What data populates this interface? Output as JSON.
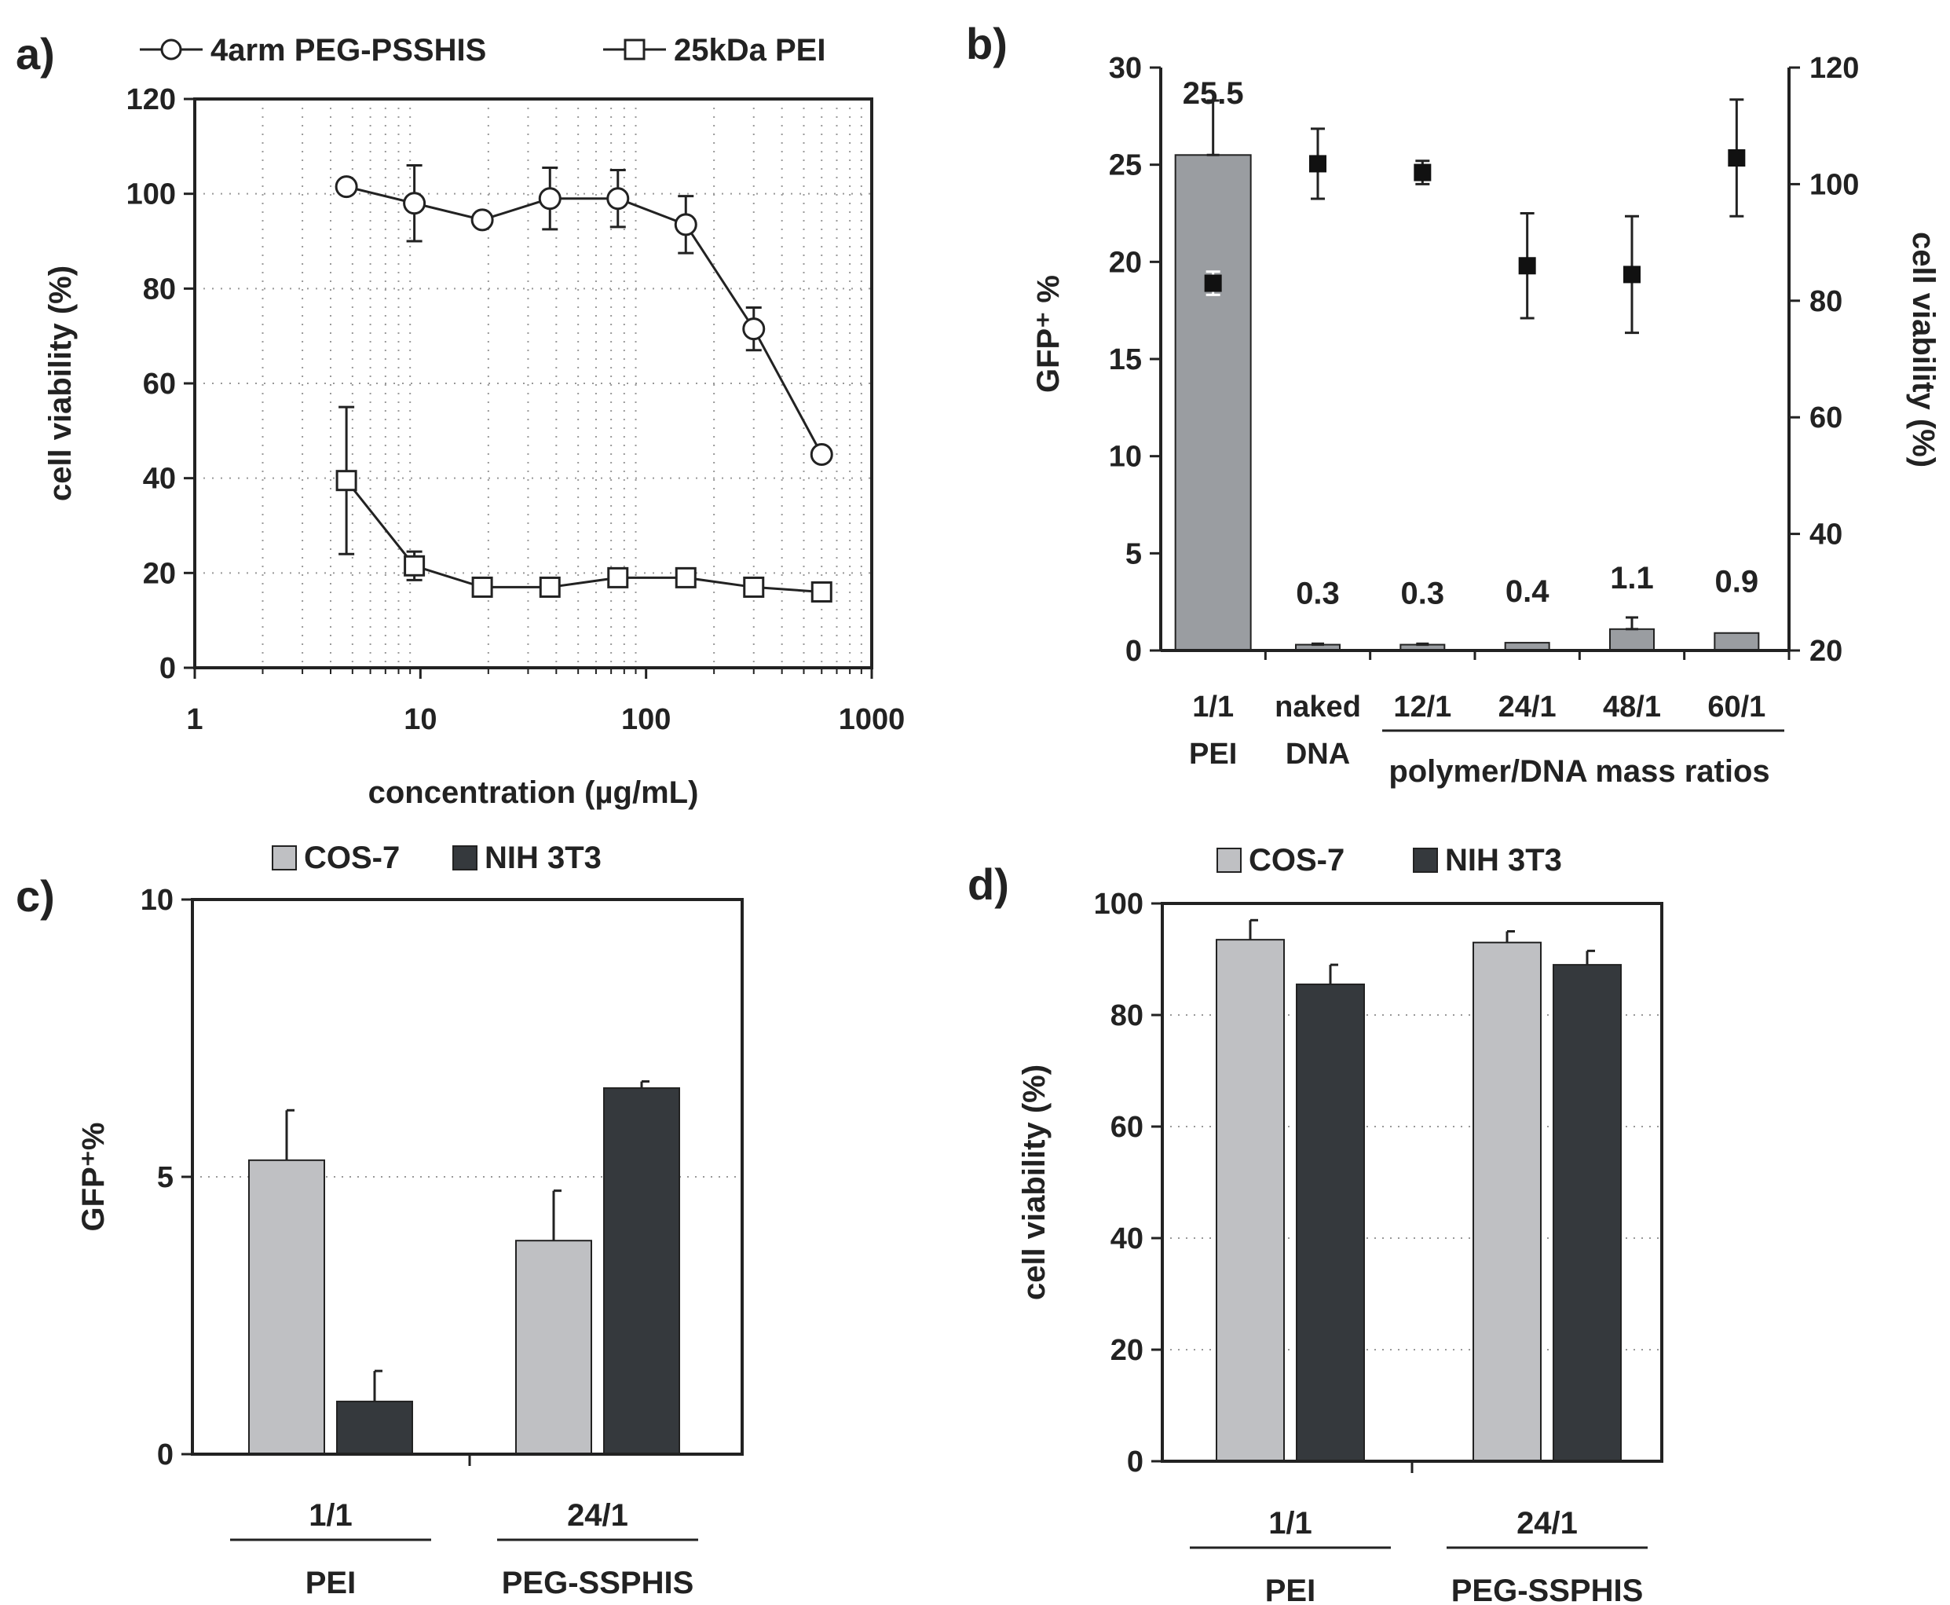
{
  "chart_data": [
    {
      "panel": "a)",
      "type": "line",
      "xscale": "log",
      "xlabel": "concentration (µg/mL)",
      "ylabel": "cell viability (%)",
      "xlim": [
        1,
        1000
      ],
      "ylim": [
        0,
        120
      ],
      "xticks": [
        1,
        10,
        100,
        1000
      ],
      "xtick_labels": [
        "1",
        "10",
        "100",
        "1000"
      ],
      "yticks": [
        0,
        20,
        40,
        60,
        80,
        100,
        120
      ],
      "ytick_labels": [
        "0",
        "20",
        "40",
        "60",
        "80",
        "100",
        "120"
      ],
      "grid": true,
      "legend_position": "top",
      "series": [
        {
          "name": "4arm PEG-PSSHIS",
          "marker": "circle",
          "x": [
            4.7,
            9.4,
            18.8,
            37.5,
            75,
            150,
            300,
            600
          ],
          "y": [
            101.5,
            98,
            94.5,
            99,
            99,
            93.5,
            71.5,
            45
          ],
          "err": [
            0,
            8,
            0,
            6.5,
            6,
            6,
            4.5,
            0
          ]
        },
        {
          "name": "25kDa PEI",
          "marker": "square",
          "x": [
            4.7,
            9.4,
            18.8,
            37.5,
            75,
            150,
            300,
            600
          ],
          "y": [
            39.5,
            21.5,
            17,
            17,
            19,
            19,
            17,
            16
          ],
          "err": [
            15.5,
            3,
            0,
            0,
            0,
            0,
            0,
            0
          ]
        }
      ]
    },
    {
      "panel": "b)",
      "type": "bar",
      "categories": [
        "1/1\nPEI",
        "naked\nDNA",
        "12/1",
        "24/1",
        "48/1",
        "60/1"
      ],
      "group_label": "polymer/DNA mass ratios",
      "ylabel": "GFP⁺ %",
      "ylabel_right": "cell viability (%)",
      "ylim": [
        0,
        30
      ],
      "ylim_right": [
        20,
        120
      ],
      "yticks": [
        0,
        5,
        10,
        15,
        20,
        25,
        30
      ],
      "ytick_labels": [
        "0",
        "5",
        "10",
        "15",
        "20",
        "25",
        "30"
      ],
      "yticks_right": [
        20,
        40,
        60,
        80,
        100,
        120
      ],
      "ytick_labels_right": [
        "20",
        "40",
        "60",
        "80",
        "100",
        "120"
      ],
      "series": [
        {
          "name": "GFP+ %",
          "axis": "left",
          "values": [
            25.5,
            0.3,
            0.3,
            0.4,
            1.1,
            0.9
          ],
          "labels": [
            "25.5",
            "0.3",
            "0.3",
            "0.4",
            "1.1",
            "0.9"
          ],
          "err": [
            2.8,
            0.05,
            0.05,
            0,
            0.6,
            0
          ],
          "color": "#9a9da1"
        },
        {
          "name": "cell viability (%)",
          "axis": "right",
          "marker": "filled-square",
          "values": [
            83,
            103.5,
            102,
            86,
            84.5,
            104.5
          ],
          "err": [
            2,
            6,
            2,
            9,
            10,
            10
          ]
        }
      ]
    },
    {
      "panel": "c)",
      "type": "bar",
      "ylabel": "GFP⁺%",
      "ylim": [
        0,
        10
      ],
      "yticks": [
        0,
        5,
        10
      ],
      "ytick_labels": [
        "0",
        "5",
        "10"
      ],
      "groups": [
        {
          "label": "1/1",
          "sublabel": "PEI"
        },
        {
          "label": "24/1",
          "sublabel": "PEG-SSPHIS"
        }
      ],
      "legend_position": "top",
      "series": [
        {
          "name": "COS-7",
          "color": "#bfc0c3",
          "values": [
            5.3,
            3.85
          ],
          "err": [
            0.9,
            0.9
          ]
        },
        {
          "name": "NIH 3T3",
          "color": "#35393d",
          "values": [
            0.95,
            6.6
          ],
          "err": [
            0.55,
            0.12
          ]
        }
      ]
    },
    {
      "panel": "d)",
      "type": "bar",
      "ylabel": "cell viability (%)",
      "ylim": [
        0,
        100
      ],
      "yticks": [
        0,
        20,
        40,
        60,
        80,
        100
      ],
      "ytick_labels": [
        "0",
        "20",
        "40",
        "60",
        "80",
        "100"
      ],
      "groups": [
        {
          "label": "1/1",
          "sublabel": "PEI"
        },
        {
          "label": "24/1",
          "sublabel": "PEG-SSPHIS"
        }
      ],
      "legend_position": "top",
      "series": [
        {
          "name": "COS-7",
          "color": "#bfc0c3",
          "values": [
            93.5,
            93
          ],
          "err": [
            3.5,
            2
          ]
        },
        {
          "name": "NIH 3T3",
          "color": "#35393d",
          "values": [
            85.5,
            89
          ],
          "err": [
            3.5,
            2.5
          ]
        }
      ]
    }
  ]
}
